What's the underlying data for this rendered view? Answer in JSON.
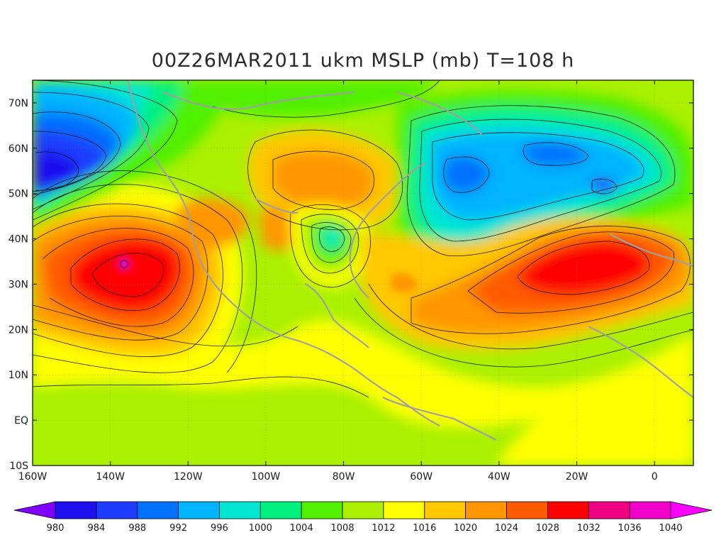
{
  "title": "00Z26MAR2011 ukm MSLP (mb) T=108 h",
  "map": {
    "variable": "MSLP",
    "units": "mb",
    "lon_range": [
      -160,
      10
    ],
    "lat_range": [
      -10,
      75
    ],
    "lon_ticks": [
      "160W",
      "140W",
      "120W",
      "100W",
      "80W",
      "60W",
      "40W",
      "20W",
      "0"
    ],
    "lat_ticks": [
      "70N",
      "60N",
      "50N",
      "40N",
      "30N",
      "20N",
      "10N",
      "EQ",
      "10S"
    ],
    "features": [
      {
        "name": "North Pacific high",
        "value_range": "1028-1032+"
      },
      {
        "name": "Alaska low",
        "value_range": "984-988"
      },
      {
        "name": "Azores high",
        "value_range": "1028-1032"
      },
      {
        "name": "North Atlantic low",
        "value_range": "992-1000"
      },
      {
        "name": "East US low",
        "value_range": "1000-1008"
      },
      {
        "name": "Canadian high",
        "value_range": "1020-1024"
      }
    ],
    "coastline_color": "#a0a0a0",
    "contour_color": "#000000"
  },
  "colorbar": {
    "levels": [
      "980",
      "984",
      "988",
      "992",
      "996",
      "1000",
      "1004",
      "1008",
      "1012",
      "1016",
      "1020",
      "1024",
      "1028",
      "1032",
      "1036",
      "1040"
    ],
    "colors": [
      "#8000ff",
      "#1e10f0",
      "#1e3cff",
      "#0070ff",
      "#00b4ff",
      "#00e6d2",
      "#00f080",
      "#50f000",
      "#aaf000",
      "#ffff00",
      "#ffc800",
      "#ff9600",
      "#ff5a00",
      "#ff0000",
      "#f00082",
      "#f000c8",
      "#ff00ff"
    ]
  }
}
